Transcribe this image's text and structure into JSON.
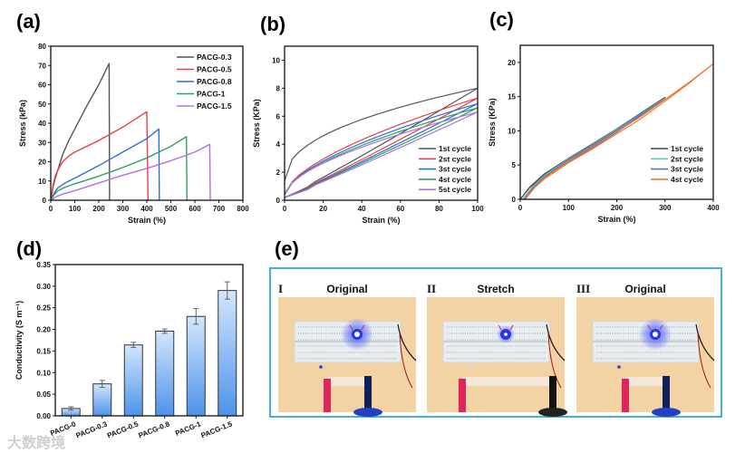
{
  "panel_labels": [
    "(a)",
    "(b)",
    "(c)",
    "(d)",
    "(e)"
  ],
  "chart_data": [
    {
      "panel": "(a)",
      "type": "line",
      "xlabel": "Strain (%)",
      "ylabel": "Stress (kPa)",
      "xlim": [
        0,
        800
      ],
      "ylim": [
        0,
        80
      ],
      "xticks": [
        0,
        100,
        200,
        300,
        400,
        500,
        600,
        700,
        800
      ],
      "yticks": [
        0,
        10,
        20,
        30,
        40,
        50,
        60,
        70,
        80
      ],
      "legend_position": "top-right",
      "series": [
        {
          "name": "PACG-0.3",
          "color": "#555555",
          "points": [
            [
              0,
              0
            ],
            [
              10,
              7
            ],
            [
              20,
              12
            ],
            [
              35,
              18
            ],
            [
              50,
              24
            ],
            [
              75,
              31
            ],
            [
              100,
              37
            ],
            [
              150,
              49
            ],
            [
              200,
              60
            ],
            [
              243,
              71
            ],
            [
              245,
              0
            ]
          ]
        },
        {
          "name": "PACG-0.5",
          "color": "#e84040",
          "points": [
            [
              0,
              0
            ],
            [
              10,
              8
            ],
            [
              20,
              13
            ],
            [
              35,
              17
            ],
            [
              50,
              20
            ],
            [
              75,
              23
            ],
            [
              100,
              25
            ],
            [
              150,
              28
            ],
            [
              200,
              31
            ],
            [
              300,
              38
            ],
            [
              400,
              46
            ],
            [
              405,
              0
            ]
          ]
        },
        {
          "name": "PACG-0.8",
          "color": "#2a6fd1",
          "points": [
            [
              0,
              0
            ],
            [
              15,
              4
            ],
            [
              30,
              6.5
            ],
            [
              60,
              9
            ],
            [
              100,
              11.5
            ],
            [
              200,
              18
            ],
            [
              300,
              25
            ],
            [
              400,
              32
            ],
            [
              450,
              37
            ],
            [
              452,
              0
            ]
          ]
        },
        {
          "name": "PACG-1",
          "color": "#2ea060",
          "points": [
            [
              0,
              0
            ],
            [
              15,
              3
            ],
            [
              30,
              5
            ],
            [
              60,
              6.8
            ],
            [
              100,
              8.5
            ],
            [
              200,
              12.5
            ],
            [
              300,
              17
            ],
            [
              400,
              22
            ],
            [
              500,
              28
            ],
            [
              565,
              33
            ],
            [
              567,
              0
            ]
          ]
        },
        {
          "name": "PACG-1.5",
          "color": "#b070e0",
          "points": [
            [
              0,
              0
            ],
            [
              25,
              2
            ],
            [
              50,
              3.2
            ],
            [
              100,
              5
            ],
            [
              200,
              9
            ],
            [
              300,
              13
            ],
            [
              400,
              16.5
            ],
            [
              500,
              20.5
            ],
            [
              600,
              25
            ],
            [
              662,
              29
            ],
            [
              664,
              0
            ]
          ]
        }
      ]
    },
    {
      "panel": "(b)",
      "type": "line",
      "xlabel": "Strain (%)",
      "ylabel": "Stress (KPa)",
      "xlim": [
        0,
        100
      ],
      "ylim": [
        0,
        11
      ],
      "xticks": [
        0,
        20,
        40,
        60,
        80,
        100
      ],
      "yticks": [
        0,
        2,
        4,
        6,
        8,
        10
      ],
      "legend_position": "bottom-right",
      "series": [
        {
          "name": "1st cycle",
          "color": "#555555",
          "max": 8.0,
          "unload_start": 1.4
        },
        {
          "name": "2st cycle",
          "color": "#e84040",
          "max": 7.3,
          "unload_start": 0.4
        },
        {
          "name": "3st cycle",
          "color": "#2a6fd1",
          "max": 6.9,
          "unload_start": 0.4
        },
        {
          "name": "4st cycle",
          "color": "#2ea060",
          "max": 6.6,
          "unload_start": 0.4
        },
        {
          "name": "5st cycle",
          "color": "#b070e0",
          "max": 6.3,
          "unload_start": 0.5
        }
      ]
    },
    {
      "panel": "(c)",
      "type": "line",
      "xlabel": "Strain (%)",
      "ylabel": "Stress (KPa)",
      "xlim": [
        0,
        400
      ],
      "ylim": [
        0,
        22.5
      ],
      "xticks": [
        0,
        100,
        200,
        300,
        400
      ],
      "yticks": [
        0,
        5,
        10,
        15,
        20
      ],
      "legend_position": "bottom-right",
      "series": [
        {
          "name": "1st cycle",
          "color": "#444444",
          "max_strain": 300,
          "points": [
            [
              0,
              0
            ],
            [
              20,
              1.8
            ],
            [
              50,
              3.7
            ],
            [
              100,
              6.0
            ],
            [
              150,
              8.1
            ],
            [
              200,
              10.3
            ],
            [
              250,
              12.6
            ],
            [
              300,
              14.9
            ]
          ]
        },
        {
          "name": "2st cycle",
          "color": "#6cc8a0",
          "max_strain": 300,
          "points": [
            [
              5,
              0
            ],
            [
              25,
              1.8
            ],
            [
              50,
              3.5
            ],
            [
              100,
              5.9
            ],
            [
              150,
              8.0
            ],
            [
              200,
              10.2
            ],
            [
              250,
              12.5
            ],
            [
              300,
              14.8
            ]
          ]
        },
        {
          "name": "3st cycle",
          "color": "#5577cc",
          "max_strain": 300,
          "points": [
            [
              8,
              0
            ],
            [
              28,
              1.8
            ],
            [
              50,
              3.3
            ],
            [
              100,
              5.8
            ],
            [
              150,
              7.9
            ],
            [
              200,
              10.1
            ],
            [
              250,
              12.4
            ],
            [
              300,
              14.7
            ]
          ]
        },
        {
          "name": "4st cycle",
          "color": "#f07a30",
          "max_strain": 400,
          "points": [
            [
              10,
              0
            ],
            [
              30,
              1.8
            ],
            [
              50,
              3.1
            ],
            [
              100,
              5.6
            ],
            [
              150,
              7.7
            ],
            [
              200,
              9.9
            ],
            [
              250,
              12.1
            ],
            [
              300,
              14.6
            ],
            [
              350,
              17.1
            ],
            [
              400,
              19.8
            ]
          ]
        }
      ]
    },
    {
      "panel": "(d)",
      "type": "bar",
      "ylabel": "Conductivity (S m⁻¹)",
      "ylim": [
        0,
        0.35
      ],
      "yticks": [
        "0.00",
        "0.05",
        "0.10",
        "0.15",
        "0.20",
        "0.25",
        "0.30",
        "0.35"
      ],
      "categories": [
        "PACG-0",
        "PACG-0.3",
        "PACG-0.5",
        "PACG-0.8",
        "PACG-1",
        "PACG-1.5"
      ],
      "values": [
        0.017,
        0.074,
        0.164,
        0.196,
        0.23,
        0.29
      ],
      "errors": [
        0.004,
        0.008,
        0.006,
        0.005,
        0.018,
        0.02
      ],
      "bar_color_top": "#d4e6fc",
      "bar_color_bottom": "#4d93ea"
    }
  ],
  "panel_e": {
    "border_color": "#3fb2e0",
    "photos": [
      {
        "numeral": "I",
        "title": "Original",
        "state": "original",
        "led_brightness": 1.0
      },
      {
        "numeral": "II",
        "title": "Stretch",
        "state": "stretched",
        "led_brightness": 0.55
      },
      {
        "numeral": "III",
        "title": "Original",
        "state": "original",
        "led_brightness": 1.0
      }
    ]
  },
  "watermark": "大数跨境"
}
